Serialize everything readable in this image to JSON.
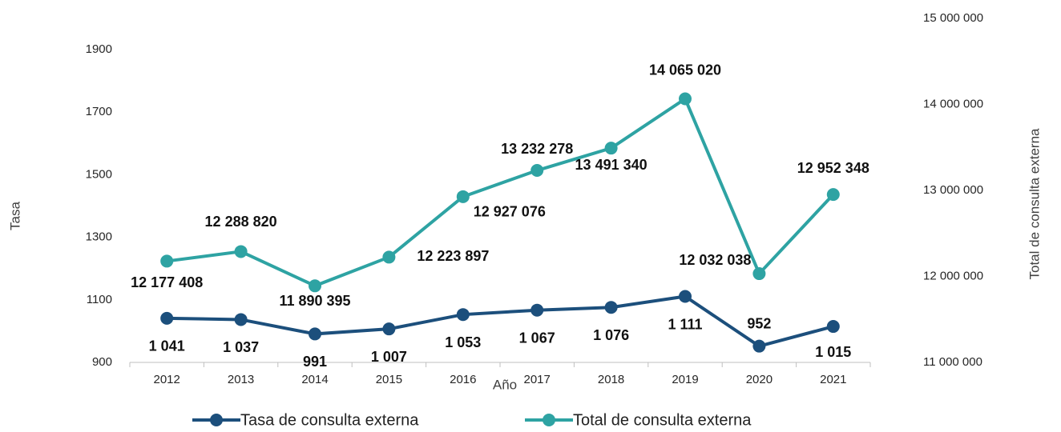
{
  "chart_data": {
    "type": "line",
    "x_label": "Año",
    "y_label": "Tasa",
    "y2_label": "Total de  consulta externa",
    "categories": [
      "2012",
      "2013",
      "2014",
      "2015",
      "2016",
      "2017",
      "2018",
      "2019",
      "2020",
      "2021"
    ],
    "series": [
      {
        "name": "Tasa de consulta externa",
        "color": "#1c4f7c",
        "values": [
          1041,
          1037,
          991,
          1007,
          1053,
          1067,
          1076,
          1111,
          952,
          1015
        ],
        "value_labels": [
          "1 041",
          "1 037",
          "991",
          "1 007",
          "1 053",
          "1 067",
          "1 076",
          "1 111",
          "952",
          "1 015"
        ]
      },
      {
        "name": "Total de consulta externa",
        "color": "#2ea3a3",
        "axis": "y2",
        "values": [
          12177408,
          12288820,
          11890395,
          12223897,
          12927076,
          13232278,
          13491340,
          14065020,
          12032038,
          12952348
        ],
        "value_labels": [
          "12 177 408",
          "12 288 820",
          "11 890 395",
          "12 223 897",
          "12 927 076",
          "13 232 278",
          "13 491 340",
          "14 065 020",
          "12 032 038",
          "12 952 348"
        ]
      }
    ],
    "ylim": [
      900,
      2000
    ],
    "yticks": [
      900,
      1100,
      1300,
      1500,
      1700,
      1900
    ],
    "y2lim": [
      11000000,
      15000000
    ],
    "y2ticks": [
      {
        "value": 11000000,
        "label": "11 000 000"
      },
      {
        "value": 12000000,
        "label": "12 000 000"
      },
      {
        "value": 13000000,
        "label": "13 000 000"
      },
      {
        "value": 14000000,
        "label": "14 000 000"
      },
      {
        "value": 15000000,
        "label": "15 000 000"
      }
    ],
    "legend": "bottom"
  }
}
